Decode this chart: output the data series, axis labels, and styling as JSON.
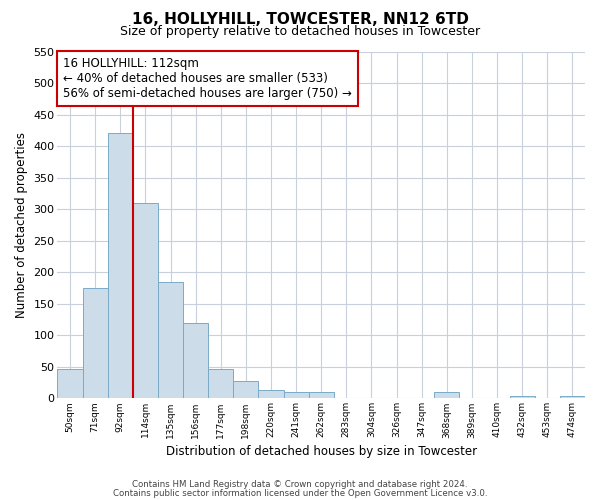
{
  "title": "16, HOLLYHILL, TOWCESTER, NN12 6TD",
  "subtitle": "Size of property relative to detached houses in Towcester",
  "xlabel": "Distribution of detached houses by size in Towcester",
  "ylabel": "Number of detached properties",
  "bin_labels": [
    "50sqm",
    "71sqm",
    "92sqm",
    "114sqm",
    "135sqm",
    "156sqm",
    "177sqm",
    "198sqm",
    "220sqm",
    "241sqm",
    "262sqm",
    "283sqm",
    "304sqm",
    "326sqm",
    "347sqm",
    "368sqm",
    "389sqm",
    "410sqm",
    "432sqm",
    "453sqm",
    "474sqm"
  ],
  "bar_values": [
    47,
    175,
    420,
    310,
    185,
    120,
    47,
    28,
    13,
    10,
    10,
    0,
    0,
    0,
    0,
    10,
    0,
    0,
    4,
    0,
    4
  ],
  "bar_color": "#ccdce8",
  "bar_edge_color": "#7aaac8",
  "vline_x_index": 2,
  "vline_side": "right",
  "vline_color": "#cc0000",
  "annotation_title": "16 HOLLYHILL: 112sqm",
  "annotation_line1": "← 40% of detached houses are smaller (533)",
  "annotation_line2": "56% of semi-detached houses are larger (750) →",
  "annotation_box_color": "#ffffff",
  "annotation_box_edge": "#cc0000",
  "ylim": [
    0,
    550
  ],
  "yticks": [
    0,
    50,
    100,
    150,
    200,
    250,
    300,
    350,
    400,
    450,
    500,
    550
  ],
  "footer1": "Contains HM Land Registry data © Crown copyright and database right 2024.",
  "footer2": "Contains public sector information licensed under the Open Government Licence v3.0.",
  "bg_color": "#ffffff",
  "grid_color": "#c8d0dc"
}
